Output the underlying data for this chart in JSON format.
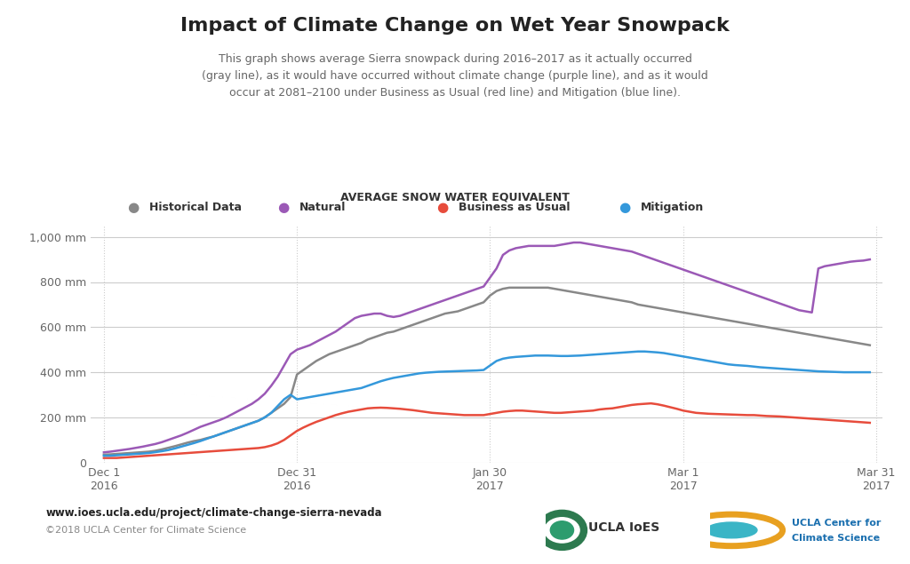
{
  "title": "Impact of Climate Change on Wet Year Snowpack",
  "subtitle": "This graph shows average Sierra snowpack during 2016–2017 as it actually occurred\n(gray line), as it would have occurred without climate change (purple line), and as it would\noccur at 2081–2100 under Business as Usual (red line) and Mitigation (blue line).",
  "axis_label": "AVERAGE SNOW WATER EQUIVALENT",
  "yticks": [
    0,
    200,
    400,
    600,
    800,
    1000
  ],
  "ylim": [
    0,
    1050
  ],
  "background_color": "#ffffff",
  "plot_bg_color": "#ffffff",
  "grid_color": "#cccccc",
  "url_text": "www.ioes.ucla.edu/project/climate-change-sierra-nevada",
  "copyright_text": "©2018 UCLA Center for Climate Science",
  "legend_labels": [
    "Historical Data",
    "Natural",
    "Business as Usual",
    "Mitigation"
  ],
  "legend_colors": [
    "#888888",
    "#9b59b6",
    "#e74c3c",
    "#3498db"
  ],
  "line_colors": {
    "historical": "#888888",
    "natural": "#9b59b6",
    "business": "#e74c3c",
    "mitigation": "#3498db"
  },
  "xtick_labels": [
    "Dec 1\n2016",
    "Dec 31\n2016",
    "Jan 30\n2017",
    "Mar 1\n2017",
    "Mar 31\n2017"
  ],
  "xtick_positions": [
    0,
    30,
    60,
    90,
    120
  ],
  "historical_data": [
    35,
    36,
    38,
    40,
    42,
    44,
    46,
    48,
    52,
    58,
    65,
    72,
    80,
    88,
    95,
    100,
    108,
    115,
    125,
    135,
    145,
    155,
    165,
    175,
    185,
    200,
    220,
    240,
    260,
    290,
    390,
    410,
    430,
    450,
    465,
    480,
    490,
    500,
    510,
    520,
    530,
    545,
    555,
    565,
    575,
    580,
    590,
    600,
    610,
    620,
    630,
    640,
    650,
    660,
    665,
    670,
    680,
    690,
    700,
    710,
    740,
    760,
    770,
    775,
    775,
    775,
    775,
    775,
    775,
    775,
    770,
    765,
    760,
    755,
    750,
    745,
    740,
    735,
    730,
    725,
    720,
    715,
    710,
    700,
    695,
    690,
    685,
    680,
    675,
    670,
    665,
    660,
    655,
    650,
    645,
    640,
    635,
    630,
    625,
    620,
    615,
    610,
    605,
    600,
    595,
    590,
    585,
    580,
    575,
    570,
    565,
    560,
    555,
    550,
    545,
    540,
    535,
    530,
    525,
    520
  ],
  "natural_data": [
    45,
    48,
    52,
    56,
    60,
    65,
    70,
    76,
    82,
    90,
    100,
    110,
    120,
    132,
    145,
    158,
    168,
    178,
    188,
    200,
    215,
    230,
    245,
    260,
    280,
    305,
    340,
    380,
    430,
    480,
    500,
    510,
    520,
    535,
    550,
    565,
    580,
    600,
    620,
    640,
    650,
    655,
    660,
    660,
    650,
    645,
    650,
    660,
    670,
    680,
    690,
    700,
    710,
    720,
    730,
    740,
    750,
    760,
    770,
    780,
    820,
    860,
    920,
    940,
    950,
    955,
    960,
    960,
    960,
    960,
    960,
    965,
    970,
    975,
    975,
    970,
    965,
    960,
    955,
    950,
    945,
    940,
    935,
    925,
    915,
    905,
    895,
    885,
    875,
    865,
    855,
    845,
    835,
    825,
    815,
    805,
    795,
    785,
    775,
    765,
    755,
    745,
    735,
    725,
    715,
    705,
    695,
    685,
    675,
    670,
    665,
    860,
    870,
    875,
    880,
    885,
    890,
    893,
    895,
    900
  ],
  "business_data": [
    20,
    20,
    20,
    22,
    24,
    26,
    28,
    30,
    32,
    34,
    36,
    38,
    40,
    42,
    44,
    46,
    48,
    50,
    52,
    54,
    56,
    58,
    60,
    62,
    64,
    68,
    75,
    85,
    100,
    120,
    140,
    155,
    168,
    180,
    190,
    200,
    210,
    218,
    225,
    230,
    235,
    240,
    242,
    243,
    242,
    240,
    238,
    235,
    232,
    228,
    224,
    220,
    218,
    216,
    214,
    212,
    210,
    210,
    210,
    210,
    215,
    220,
    225,
    228,
    230,
    230,
    228,
    226,
    224,
    222,
    220,
    220,
    222,
    224,
    226,
    228,
    230,
    235,
    238,
    240,
    245,
    250,
    255,
    258,
    260,
    262,
    258,
    252,
    245,
    238,
    230,
    225,
    220,
    218,
    216,
    215,
    214,
    213,
    212,
    211,
    210,
    210,
    208,
    206,
    205,
    204,
    202,
    200,
    198,
    196,
    194,
    192,
    190,
    188,
    186,
    184,
    182,
    180,
    178,
    176
  ],
  "mitigation_data": [
    30,
    30,
    32,
    34,
    36,
    38,
    40,
    42,
    46,
    50,
    55,
    62,
    70,
    78,
    86,
    95,
    105,
    115,
    125,
    135,
    145,
    155,
    165,
    175,
    185,
    200,
    220,
    250,
    280,
    300,
    280,
    285,
    290,
    295,
    300,
    305,
    310,
    315,
    320,
    325,
    330,
    340,
    350,
    360,
    368,
    375,
    380,
    385,
    390,
    395,
    398,
    400,
    402,
    403,
    404,
    405,
    406,
    407,
    408,
    410,
    430,
    450,
    460,
    465,
    468,
    470,
    472,
    474,
    474,
    474,
    473,
    472,
    472,
    473,
    474,
    476,
    478,
    480,
    482,
    484,
    486,
    488,
    490,
    492,
    492,
    490,
    488,
    485,
    480,
    475,
    470,
    465,
    460,
    455,
    450,
    445,
    440,
    435,
    432,
    430,
    428,
    425,
    422,
    420,
    418,
    416,
    414,
    412,
    410,
    408,
    406,
    404,
    403,
    402,
    401,
    400,
    400,
    400,
    400,
    400
  ]
}
